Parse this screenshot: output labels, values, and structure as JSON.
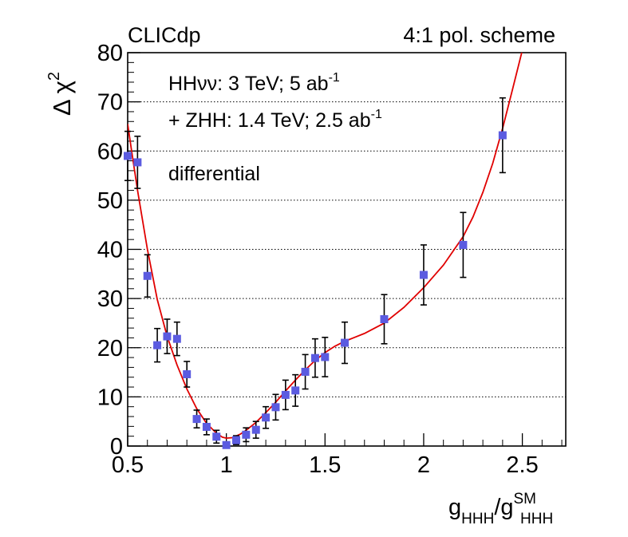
{
  "chart_data": {
    "type": "scatter",
    "header_left": "CLICdp",
    "header_right": "4:1 pol. scheme",
    "annotations": [
      {
        "base": "HHνν: 3 TeV; 5 ab",
        "sup": "-1"
      },
      {
        "base": "+ ZHH: 1.4 TeV; 2.5 ab",
        "sup": "-1"
      },
      {
        "base": "differential",
        "sup": ""
      }
    ],
    "ylabel": {
      "base": "Δ χ",
      "sup": "2"
    },
    "xlabel": {
      "g1": "g",
      "sub1": "HHH",
      "slash": "/g",
      "sup2": "SM",
      "sub2": "HHH"
    },
    "xlim": [
      0.5,
      2.72
    ],
    "ylim": [
      0,
      80
    ],
    "x_ticks": [
      0.5,
      1,
      1.5,
      2,
      2.5
    ],
    "x_tick_labels": [
      "0.5",
      "1",
      "1.5",
      "2",
      "2.5"
    ],
    "y_ticks": [
      0,
      10,
      20,
      30,
      40,
      50,
      60,
      70,
      80
    ],
    "y_tick_labels": [
      "0",
      "10",
      "20",
      "30",
      "40",
      "50",
      "60",
      "70",
      "80"
    ],
    "grid": "horizontal-dotted",
    "marker_color": "#5b5be0",
    "curve_color": "#e00000",
    "points": [
      {
        "x": 0.5,
        "y": 59.0,
        "err": 5.0
      },
      {
        "x": 0.55,
        "y": 57.7,
        "err": 5.3
      },
      {
        "x": 0.6,
        "y": 34.6,
        "err": 4.3
      },
      {
        "x": 0.65,
        "y": 20.5,
        "err": 3.4
      },
      {
        "x": 0.7,
        "y": 22.3,
        "err": 3.5
      },
      {
        "x": 0.75,
        "y": 21.8,
        "err": 3.4
      },
      {
        "x": 0.8,
        "y": 14.6,
        "err": 2.6
      },
      {
        "x": 0.85,
        "y": 5.5,
        "err": 1.8
      },
      {
        "x": 0.9,
        "y": 3.9,
        "err": 1.6
      },
      {
        "x": 0.95,
        "y": 1.9,
        "err": 1.3
      },
      {
        "x": 1.0,
        "y": 0.2,
        "err": 0.6
      },
      {
        "x": 1.05,
        "y": 1.2,
        "err": 0.9
      },
      {
        "x": 1.1,
        "y": 2.3,
        "err": 1.4
      },
      {
        "x": 1.15,
        "y": 3.3,
        "err": 1.7
      },
      {
        "x": 1.2,
        "y": 5.8,
        "err": 2.2
      },
      {
        "x": 1.25,
        "y": 7.9,
        "err": 2.6
      },
      {
        "x": 1.3,
        "y": 10.4,
        "err": 3.0
      },
      {
        "x": 1.35,
        "y": 11.3,
        "err": 3.2
      },
      {
        "x": 1.4,
        "y": 15.1,
        "err": 3.5
      },
      {
        "x": 1.45,
        "y": 17.9,
        "err": 3.9
      },
      {
        "x": 1.5,
        "y": 18.1,
        "err": 4.0
      },
      {
        "x": 1.6,
        "y": 21.0,
        "err": 4.2
      },
      {
        "x": 1.8,
        "y": 25.8,
        "err": 5.0
      },
      {
        "x": 2.0,
        "y": 34.8,
        "err": 6.1
      },
      {
        "x": 2.2,
        "y": 40.9,
        "err": 6.6
      },
      {
        "x": 2.4,
        "y": 63.2,
        "err": 7.6
      }
    ],
    "fit_curve": [
      [
        0.5,
        65.5
      ],
      [
        0.52,
        60.0
      ],
      [
        0.55,
        52.0
      ],
      [
        0.6,
        40.0
      ],
      [
        0.65,
        29.8
      ],
      [
        0.7,
        22.3
      ],
      [
        0.75,
        16.5
      ],
      [
        0.8,
        11.6
      ],
      [
        0.85,
        7.6
      ],
      [
        0.9,
        4.6
      ],
      [
        0.95,
        2.6
      ],
      [
        0.98,
        1.8
      ],
      [
        1.0,
        1.6
      ],
      [
        1.03,
        1.7
      ],
      [
        1.07,
        2.4
      ],
      [
        1.1,
        3.2
      ],
      [
        1.15,
        4.8
      ],
      [
        1.2,
        6.8
      ],
      [
        1.25,
        8.9
      ],
      [
        1.3,
        11.2
      ],
      [
        1.35,
        13.4
      ],
      [
        1.4,
        15.5
      ],
      [
        1.45,
        17.4
      ],
      [
        1.5,
        19.0
      ],
      [
        1.55,
        20.3
      ],
      [
        1.6,
        21.3
      ],
      [
        1.65,
        22.1
      ],
      [
        1.7,
        22.9
      ],
      [
        1.8,
        25.0
      ],
      [
        1.9,
        28.2
      ],
      [
        2.0,
        32.2
      ],
      [
        2.1,
        36.8
      ],
      [
        2.2,
        42.6
      ],
      [
        2.25,
        46.6
      ],
      [
        2.3,
        51.6
      ],
      [
        2.35,
        57.5
      ],
      [
        2.4,
        64.6
      ],
      [
        2.45,
        72.5
      ],
      [
        2.5,
        80.5
      ]
    ]
  }
}
